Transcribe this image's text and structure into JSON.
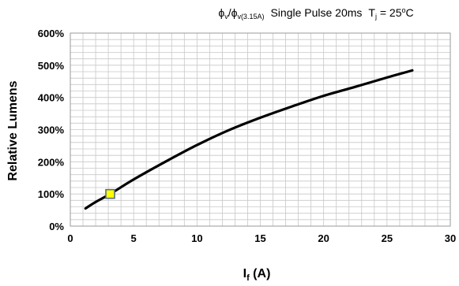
{
  "chart_data": {
    "type": "line",
    "title": {
      "phi1": "ϕ",
      "phi1_sub": "v",
      "slash": "/",
      "phi2": "ϕ",
      "phi2_sub": "v(3.15A)",
      "pulse": "Single Pulse 20ms",
      "tj": "T",
      "tj_sub": "j",
      "tj_eq": " = 25",
      "tj_sup": "o",
      "tj_unit": "C"
    },
    "xlabel": {
      "main": "I",
      "sub": "f",
      "unit": " (A)"
    },
    "ylabel": "Relative Lumens",
    "xlim": [
      0,
      30
    ],
    "ylim": [
      0,
      600
    ],
    "x_ticks": [
      "0",
      "5",
      "10",
      "15",
      "20",
      "25",
      "30"
    ],
    "y_ticks": [
      "0%",
      "100%",
      "200%",
      "300%",
      "400%",
      "500%",
      "600%"
    ],
    "grid": true,
    "series": [
      {
        "color": "#000000",
        "x": [
          1.2,
          2,
          3.15,
          5,
          7.5,
          10,
          12.5,
          15,
          17.5,
          20,
          22.5,
          25,
          27
        ],
        "y": [
          55,
          75,
          100,
          145,
          200,
          252,
          298,
          337,
          372,
          405,
          433,
          462,
          484
        ]
      }
    ],
    "marker": {
      "x": 3.15,
      "y": 100,
      "fill": "#ffff00",
      "stroke": "#5a6e7a"
    }
  }
}
